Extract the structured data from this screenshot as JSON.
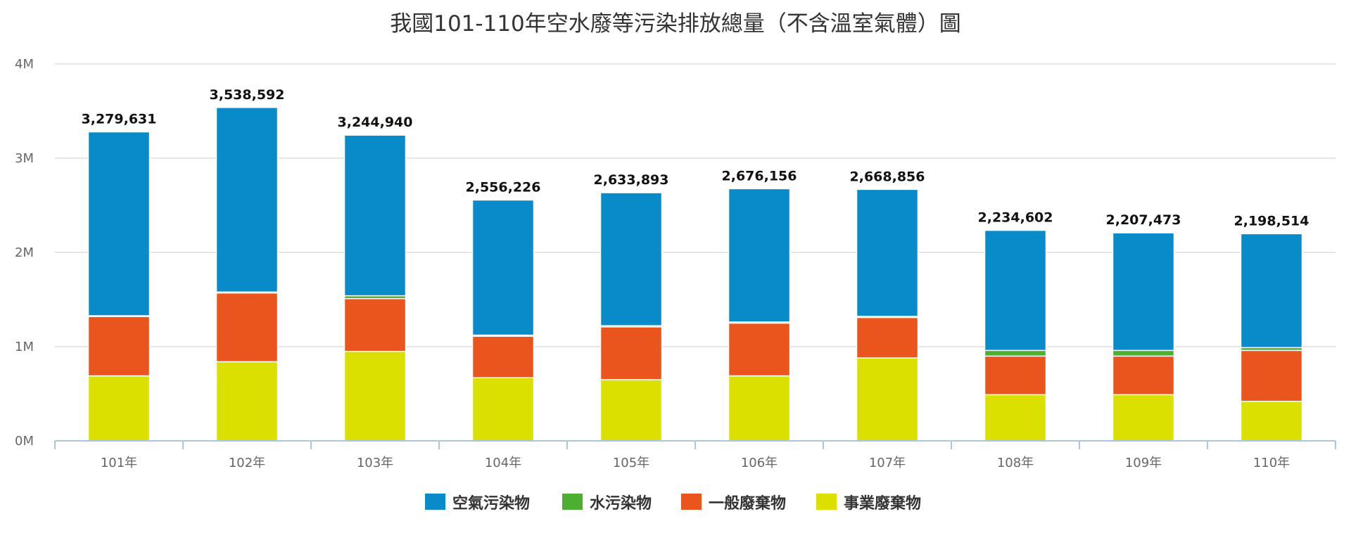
{
  "chart_data": {
    "type": "bar",
    "stacked": true,
    "title": "我國101-110年空水廢等污染排放總量（不含溫室氣體）圖",
    "xlabel": "",
    "ylabel": "",
    "ylim": [
      0,
      4000000
    ],
    "y_ticks": [
      "0M",
      "1M",
      "2M",
      "3M",
      "4M"
    ],
    "y_tick_values": [
      0,
      1000000,
      2000000,
      3000000,
      4000000
    ],
    "grid": true,
    "legend_position": "bottom-center",
    "categories": [
      "101年",
      "102年",
      "103年",
      "104年",
      "105年",
      "106年",
      "107年",
      "108年",
      "109年",
      "110年"
    ],
    "series": [
      {
        "name": "事業廢棄物",
        "color": "#dbe000",
        "values": [
          690000,
          840000,
          950000,
          670000,
          650000,
          690000,
          880000,
          490000,
          490000,
          420000
        ]
      },
      {
        "name": "一般廢棄物",
        "color": "#ea541d",
        "values": [
          630000,
          730000,
          560000,
          440000,
          560000,
          560000,
          430000,
          410000,
          410000,
          540000
        ]
      },
      {
        "name": "水污染物",
        "color": "#4daf32",
        "values": [
          8000,
          10000,
          30000,
          12000,
          12000,
          12000,
          12000,
          60000,
          60000,
          30000
        ]
      },
      {
        "name": "空氣污染物",
        "color": "#0a8bc9",
        "values": [
          1951631,
          1958592,
          1704940,
          1434226,
          1411893,
          1414156,
          1346856,
          1274602,
          1247473,
          1208514
        ]
      }
    ],
    "totals": [
      3279631,
      3538592,
      3244940,
      2556226,
      2633893,
      2676156,
      2668856,
      2234602,
      2207473,
      2198514
    ],
    "total_labels": [
      "3,279,631",
      "3,538,592",
      "3,244,940",
      "2,556,226",
      "2,633,893",
      "2,676,156",
      "2,668,856",
      "2,234,602",
      "2,207,473",
      "2,198,514"
    ],
    "legend_order": [
      "空氣污染物",
      "水污染物",
      "一般廢棄物",
      "事業廢棄物"
    ]
  }
}
